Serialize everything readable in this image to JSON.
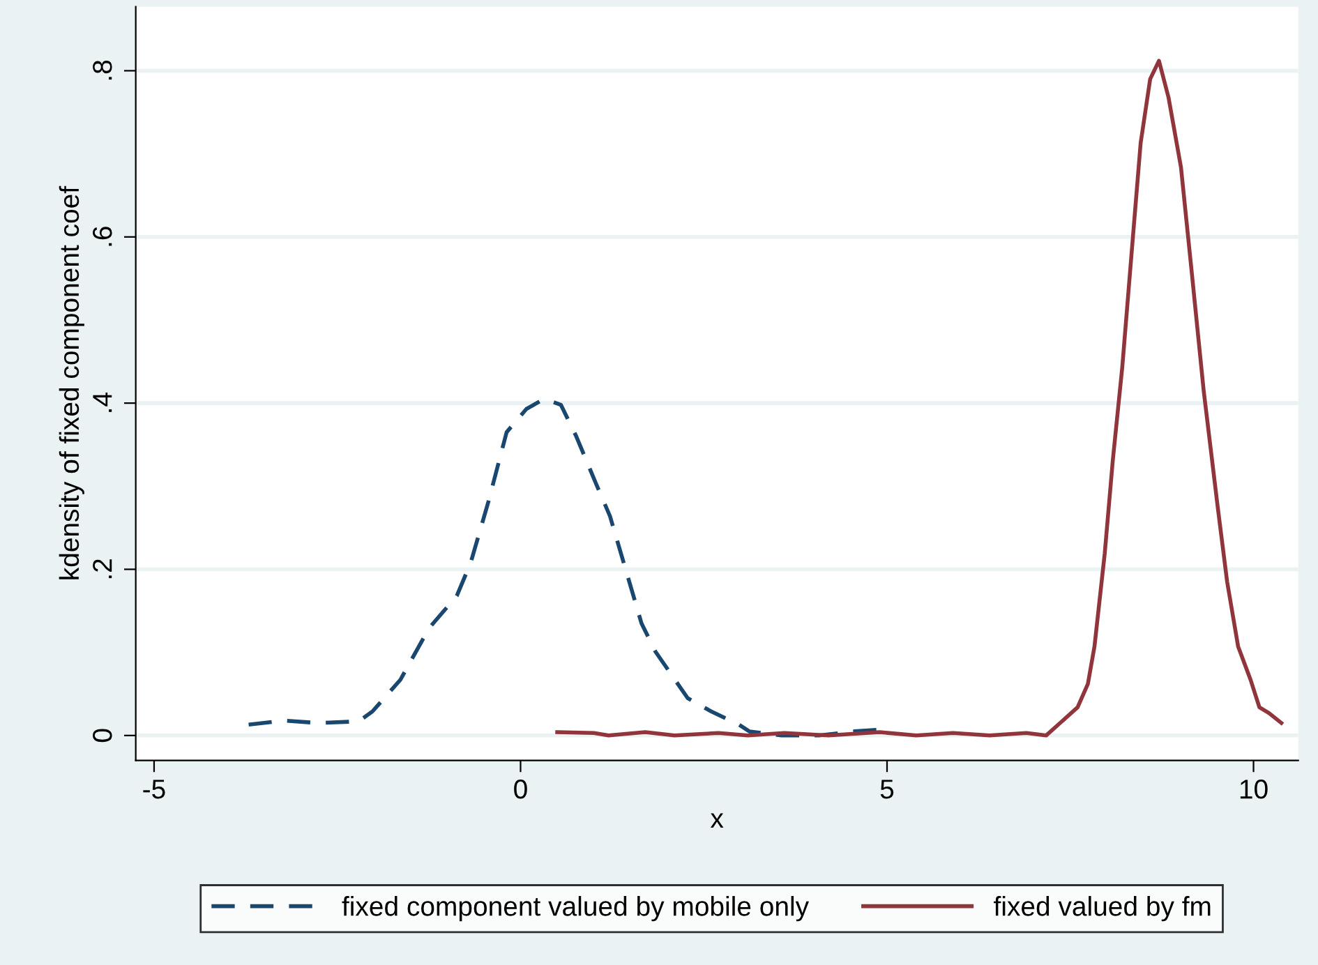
{
  "chart_data": {
    "type": "line",
    "xlabel": "x",
    "ylabel": "kdensity of fixed component coef",
    "xlim": [
      -5.25,
      10.61
    ],
    "xticks": [
      -5,
      0,
      5,
      10
    ],
    "ylim": [
      -0.03,
      0.877
    ],
    "yticks": [
      {
        "value": 0,
        "label": "0"
      },
      {
        "value": 0.2,
        "label": ".2"
      },
      {
        "value": 0.4,
        "label": ".4"
      },
      {
        "value": 0.6,
        "label": ".6"
      },
      {
        "value": 0.8,
        "label": ".8"
      }
    ],
    "grid": "y",
    "legend": "bottom",
    "series": [
      {
        "name": "fixed component valued by mobile only",
        "color": "#1a476f",
        "line_style": "dashed",
        "x": [
          -3.71,
          -3.23,
          -2.76,
          -2.21,
          -2.02,
          -1.64,
          -1.25,
          -0.87,
          -0.68,
          -0.44,
          -0.19,
          0.08,
          0.32,
          0.55,
          0.76,
          1.03,
          1.22,
          1.46,
          1.65,
          1.84,
          2.28,
          2.6,
          2.98,
          3.12,
          3.56,
          4.07,
          4.56,
          4.89
        ],
        "values": [
          0.013,
          0.018,
          0.015,
          0.017,
          0.029,
          0.067,
          0.129,
          0.168,
          0.208,
          0.281,
          0.365,
          0.393,
          0.405,
          0.398,
          0.36,
          0.303,
          0.264,
          0.192,
          0.135,
          0.101,
          0.045,
          0.029,
          0.013,
          0.005,
          0,
          0,
          0.005,
          0.007
        ]
      },
      {
        "name": "fixed valued by fm",
        "color": "#90353b",
        "line_style": "solid",
        "x": [
          0.5,
          1.0,
          1.2,
          1.7,
          2.1,
          2.7,
          3.1,
          3.6,
          4.2,
          4.9,
          5.4,
          5.9,
          6.4,
          6.9,
          7.17,
          7.36,
          7.6,
          7.74,
          7.83,
          7.97,
          8.08,
          8.21,
          8.35,
          8.46,
          8.59,
          8.71,
          8.84,
          9.01,
          9.16,
          9.32,
          9.51,
          9.64,
          9.79,
          9.96,
          10.08,
          10.21,
          10.38
        ],
        "values": [
          0.004,
          0.003,
          0,
          0.004,
          0,
          0.003,
          0,
          0.003,
          0,
          0.004,
          0,
          0.003,
          0,
          0.003,
          0,
          0.015,
          0.034,
          0.062,
          0.107,
          0.219,
          0.331,
          0.444,
          0.595,
          0.713,
          0.79,
          0.812,
          0.768,
          0.684,
          0.555,
          0.415,
          0.276,
          0.185,
          0.107,
          0.067,
          0.034,
          0.027,
          0.015
        ]
      }
    ]
  }
}
